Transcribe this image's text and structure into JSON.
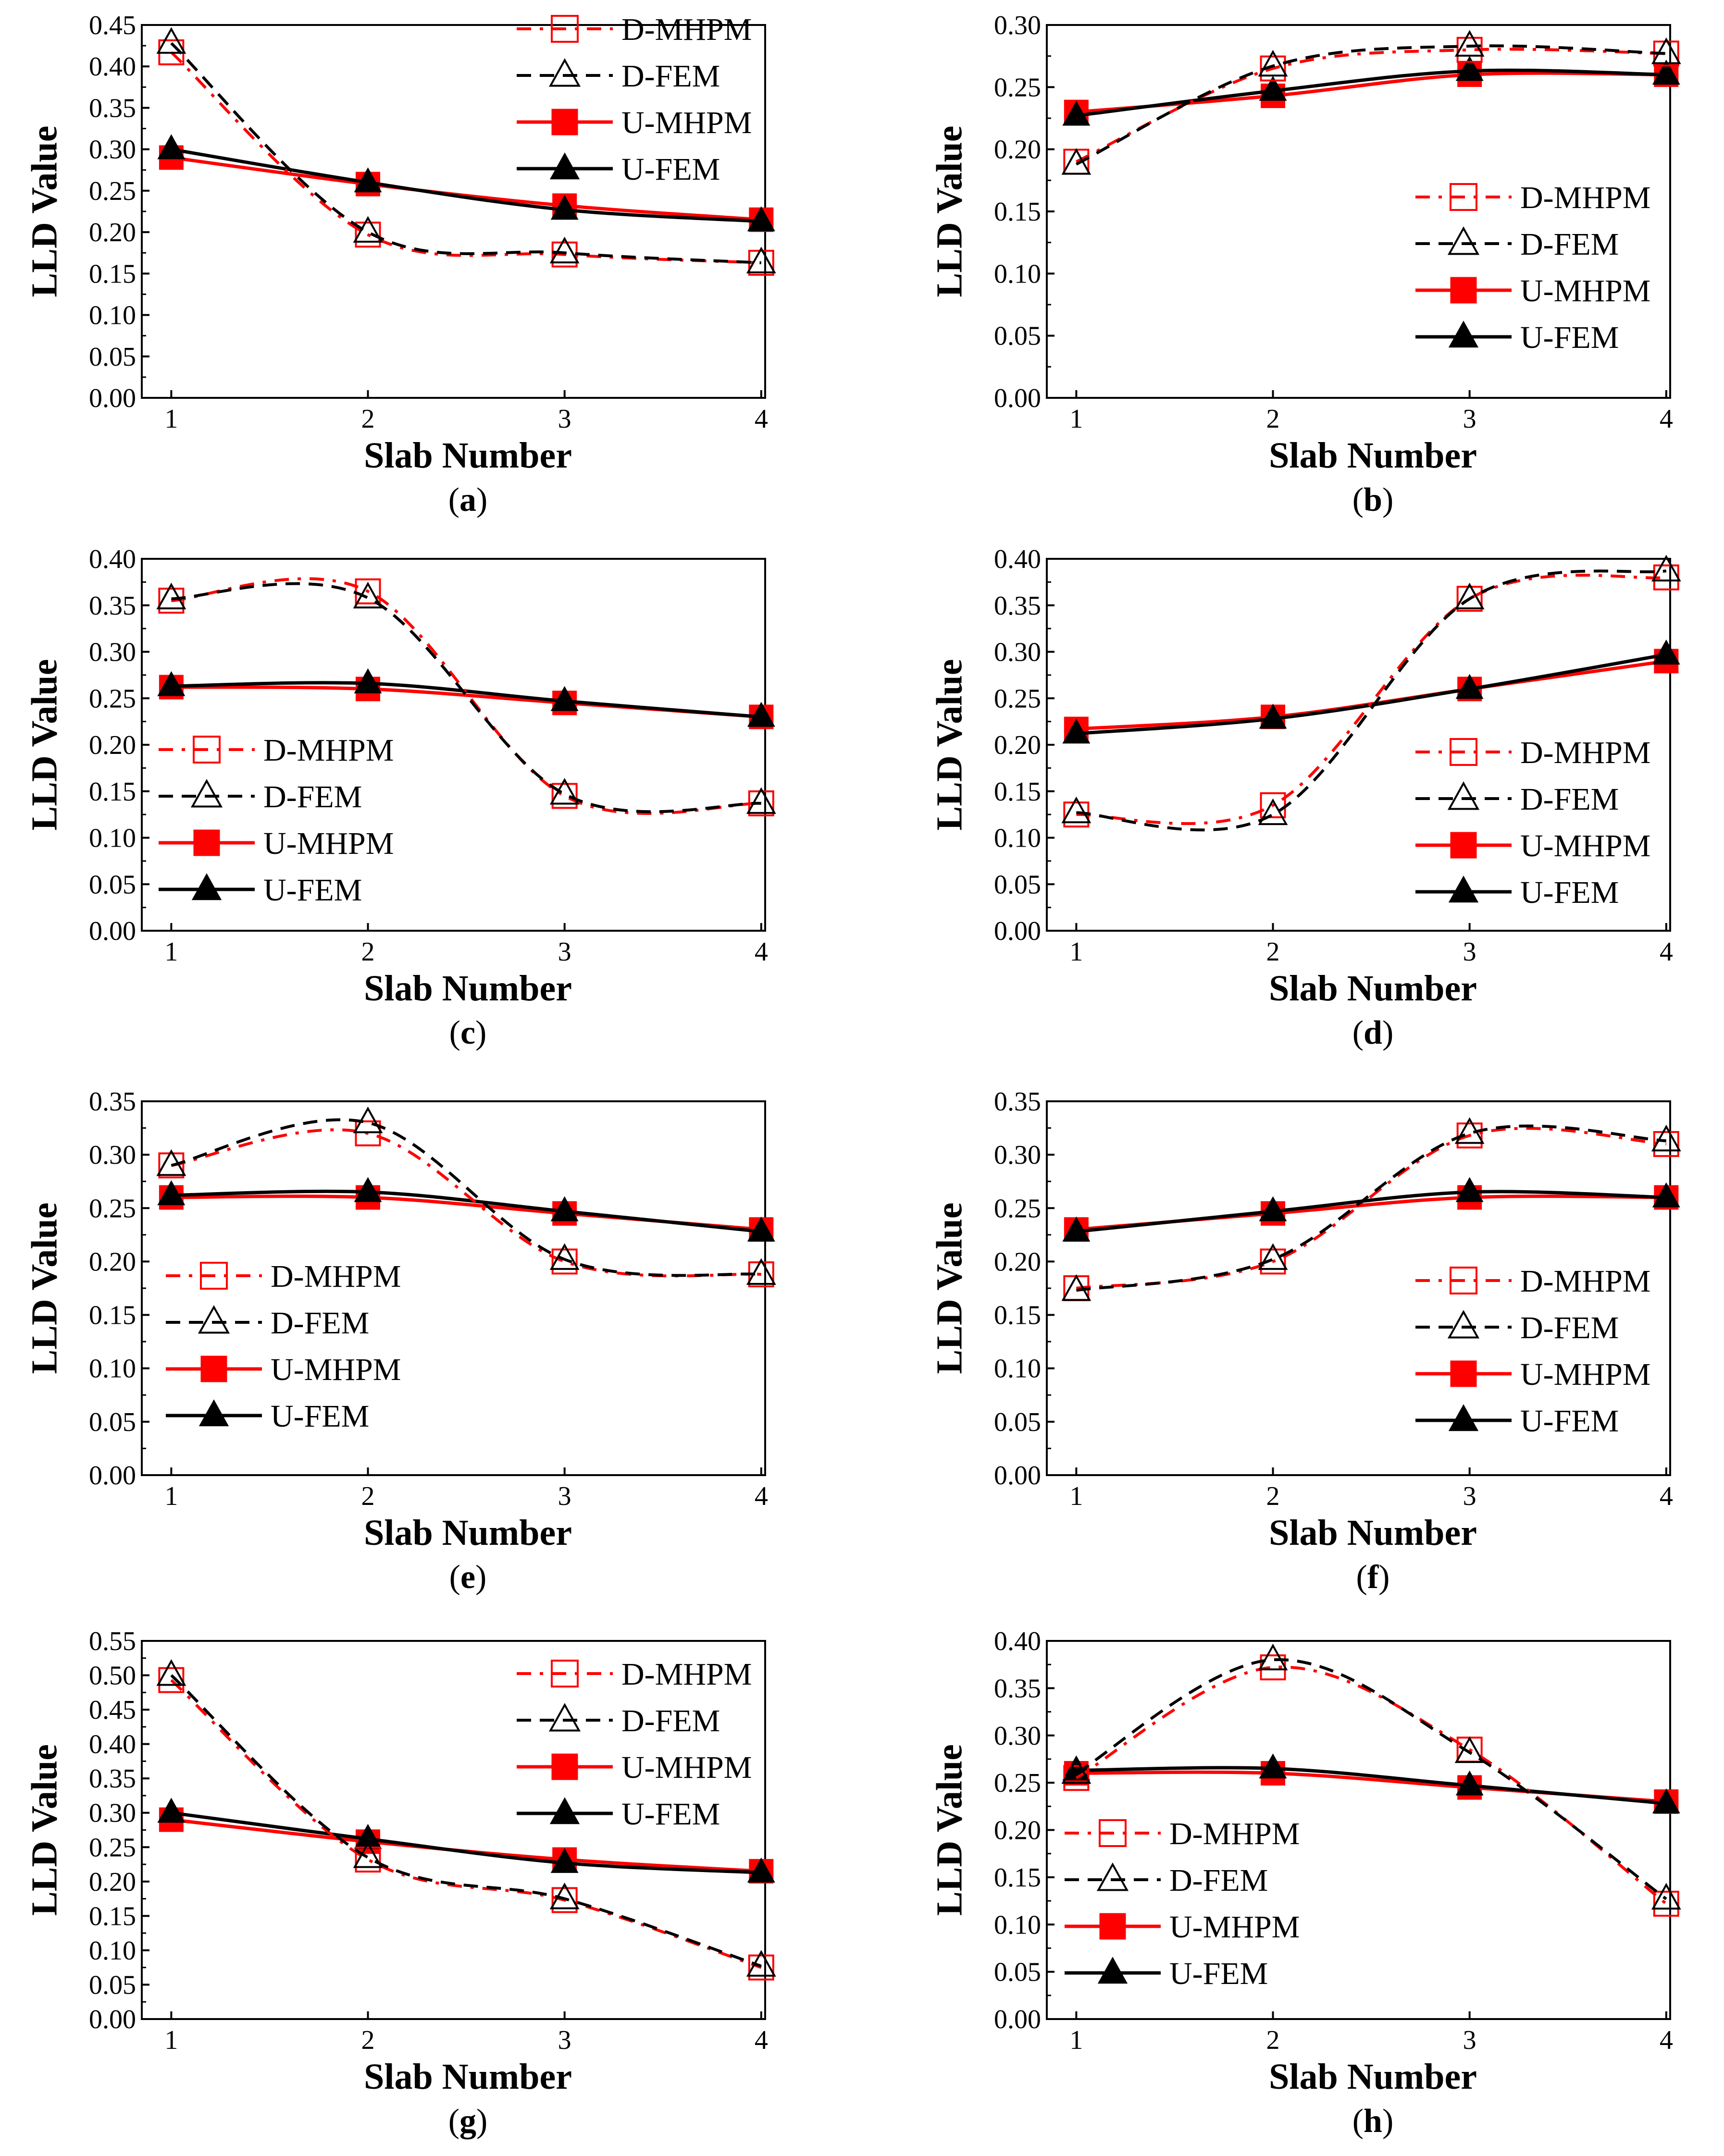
{
  "figure": {
    "colors": {
      "mhpm": "#ff0000",
      "fem": "#000000"
    },
    "series_order": [
      "D-MHPM",
      "D-FEM",
      "U-MHPM",
      "U-FEM"
    ]
  },
  "chart_data": [
    {
      "type": "line",
      "panel_label": "a",
      "xlabel": "Slab Number",
      "ylabel": "LLD Value",
      "x": [
        1,
        2,
        3,
        4
      ],
      "xticks": [
        "1",
        "2",
        "3",
        "4"
      ],
      "ylim": [
        0,
        0.45
      ],
      "yticks": [
        "0.00",
        "0.05",
        "0.10",
        "0.15",
        "0.20",
        "0.25",
        "0.30",
        "0.35",
        "0.40",
        "0.45"
      ],
      "legend_position": "top-right",
      "series": [
        {
          "name": "D-MHPM",
          "values": [
            0.417,
            0.197,
            0.173,
            0.163
          ]
        },
        {
          "name": "D-FEM",
          "values": [
            0.428,
            0.2,
            0.175,
            0.163
          ]
        },
        {
          "name": "U-MHPM",
          "values": [
            0.29,
            0.258,
            0.232,
            0.215
          ]
        },
        {
          "name": "U-FEM",
          "values": [
            0.3,
            0.26,
            0.227,
            0.213
          ]
        }
      ]
    },
    {
      "type": "line",
      "panel_label": "b",
      "xlabel": "Slab Number",
      "ylabel": "LLD Value",
      "x": [
        1,
        2,
        3,
        4
      ],
      "xticks": [
        "1",
        "2",
        "3",
        "4"
      ],
      "ylim": [
        0,
        0.3
      ],
      "yticks": [
        "0.00",
        "0.05",
        "0.10",
        "0.15",
        "0.20",
        "0.25",
        "0.30"
      ],
      "legend_position": "center-right",
      "series": [
        {
          "name": "D-MHPM",
          "values": [
            0.19,
            0.265,
            0.28,
            0.277
          ]
        },
        {
          "name": "D-FEM",
          "values": [
            0.188,
            0.267,
            0.283,
            0.277
          ]
        },
        {
          "name": "U-MHPM",
          "values": [
            0.23,
            0.243,
            0.26,
            0.26
          ]
        },
        {
          "name": "U-FEM",
          "values": [
            0.227,
            0.247,
            0.263,
            0.26
          ]
        }
      ]
    },
    {
      "type": "line",
      "panel_label": "c",
      "xlabel": "Slab Number",
      "ylabel": "LLD Value",
      "x": [
        1,
        2,
        3,
        4
      ],
      "xticks": [
        "1",
        "2",
        "3",
        "4"
      ],
      "ylim": [
        0,
        0.4
      ],
      "yticks": [
        "0.00",
        "0.05",
        "0.10",
        "0.15",
        "0.20",
        "0.25",
        "0.30",
        "0.35",
        "0.40"
      ],
      "legend_position": "lower-left",
      "series": [
        {
          "name": "D-MHPM",
          "values": [
            0.355,
            0.365,
            0.145,
            0.137
          ]
        },
        {
          "name": "D-FEM",
          "values": [
            0.357,
            0.358,
            0.147,
            0.137
          ]
        },
        {
          "name": "U-MHPM",
          "values": [
            0.262,
            0.26,
            0.245,
            0.23
          ]
        },
        {
          "name": "U-FEM",
          "values": [
            0.263,
            0.266,
            0.247,
            0.23
          ]
        }
      ]
    },
    {
      "type": "line",
      "panel_label": "d",
      "xlabel": "Slab Number",
      "ylabel": "LLD Value",
      "x": [
        1,
        2,
        3,
        4
      ],
      "xticks": [
        "1",
        "2",
        "3",
        "4"
      ],
      "ylim": [
        0,
        0.4
      ],
      "yticks": [
        "0.00",
        "0.05",
        "0.10",
        "0.15",
        "0.20",
        "0.25",
        "0.30",
        "0.35",
        "0.40"
      ],
      "legend_position": "center-right",
      "series": [
        {
          "name": "D-MHPM",
          "values": [
            0.125,
            0.135,
            0.357,
            0.38
          ]
        },
        {
          "name": "D-FEM",
          "values": [
            0.127,
            0.125,
            0.357,
            0.387
          ]
        },
        {
          "name": "U-MHPM",
          "values": [
            0.217,
            0.23,
            0.26,
            0.29
          ]
        },
        {
          "name": "U-FEM",
          "values": [
            0.212,
            0.228,
            0.26,
            0.297
          ]
        }
      ]
    },
    {
      "type": "line",
      "panel_label": "e",
      "xlabel": "Slab Number",
      "ylabel": "LLD Value",
      "x": [
        1,
        2,
        3,
        4
      ],
      "xticks": [
        "1",
        "2",
        "3",
        "4"
      ],
      "ylim": [
        0,
        0.35
      ],
      "yticks": [
        "0.00",
        "0.05",
        "0.10",
        "0.15",
        "0.20",
        "0.25",
        "0.30",
        "0.35"
      ],
      "legend_position": "lower-left",
      "series": [
        {
          "name": "D-MHPM",
          "values": [
            0.29,
            0.32,
            0.2,
            0.188
          ]
        },
        {
          "name": "D-FEM",
          "values": [
            0.29,
            0.33,
            0.202,
            0.188
          ]
        },
        {
          "name": "U-MHPM",
          "values": [
            0.26,
            0.26,
            0.245,
            0.23
          ]
        },
        {
          "name": "U-FEM",
          "values": [
            0.262,
            0.265,
            0.247,
            0.228
          ]
        }
      ]
    },
    {
      "type": "line",
      "panel_label": "f",
      "xlabel": "Slab Number",
      "ylabel": "LLD Value",
      "x": [
        1,
        2,
        3,
        4
      ],
      "xticks": [
        "1",
        "2",
        "3",
        "4"
      ],
      "ylim": [
        0,
        0.35
      ],
      "yticks": [
        "0.00",
        "0.05",
        "0.10",
        "0.15",
        "0.20",
        "0.25",
        "0.30",
        "0.35"
      ],
      "legend_position": "lower-right",
      "series": [
        {
          "name": "D-MHPM",
          "values": [
            0.175,
            0.2,
            0.318,
            0.31
          ]
        },
        {
          "name": "D-FEM",
          "values": [
            0.173,
            0.202,
            0.32,
            0.313
          ]
        },
        {
          "name": "U-MHPM",
          "values": [
            0.23,
            0.245,
            0.26,
            0.26
          ]
        },
        {
          "name": "U-FEM",
          "values": [
            0.228,
            0.247,
            0.265,
            0.26
          ]
        }
      ]
    },
    {
      "type": "line",
      "panel_label": "g",
      "xlabel": "Slab Number",
      "ylabel": "LLD Value",
      "x": [
        1,
        2,
        3,
        4
      ],
      "xticks": [
        "1",
        "2",
        "3",
        "4"
      ],
      "ylim": [
        0,
        0.55
      ],
      "yticks": [
        "0.00",
        "0.05",
        "0.10",
        "0.15",
        "0.20",
        "0.25",
        "0.30",
        "0.35",
        "0.40",
        "0.45",
        "0.50",
        "0.55"
      ],
      "legend_position": "top-right",
      "series": [
        {
          "name": "D-MHPM",
          "values": [
            0.493,
            0.232,
            0.173,
            0.075
          ]
        },
        {
          "name": "D-FEM",
          "values": [
            0.5,
            0.235,
            0.175,
            0.077
          ]
        },
        {
          "name": "U-MHPM",
          "values": [
            0.29,
            0.258,
            0.232,
            0.215
          ]
        },
        {
          "name": "U-FEM",
          "values": [
            0.3,
            0.262,
            0.227,
            0.213
          ]
        }
      ]
    },
    {
      "type": "line",
      "panel_label": "h",
      "xlabel": "Slab Number",
      "ylabel": "LLD Value",
      "x": [
        1,
        2,
        3,
        4
      ],
      "xticks": [
        "1",
        "2",
        "3",
        "4"
      ],
      "ylim": [
        0,
        0.4
      ],
      "yticks": [
        "0.00",
        "0.05",
        "0.10",
        "0.15",
        "0.20",
        "0.25",
        "0.30",
        "0.35",
        "0.40"
      ],
      "legend_position": "lower-left",
      "series": [
        {
          "name": "D-MHPM",
          "values": [
            0.255,
            0.372,
            0.285,
            0.122
          ]
        },
        {
          "name": "D-FEM",
          "values": [
            0.26,
            0.38,
            0.282,
            0.127
          ]
        },
        {
          "name": "U-MHPM",
          "values": [
            0.26,
            0.26,
            0.245,
            0.23
          ]
        },
        {
          "name": "U-FEM",
          "values": [
            0.263,
            0.265,
            0.247,
            0.228
          ]
        }
      ]
    }
  ]
}
